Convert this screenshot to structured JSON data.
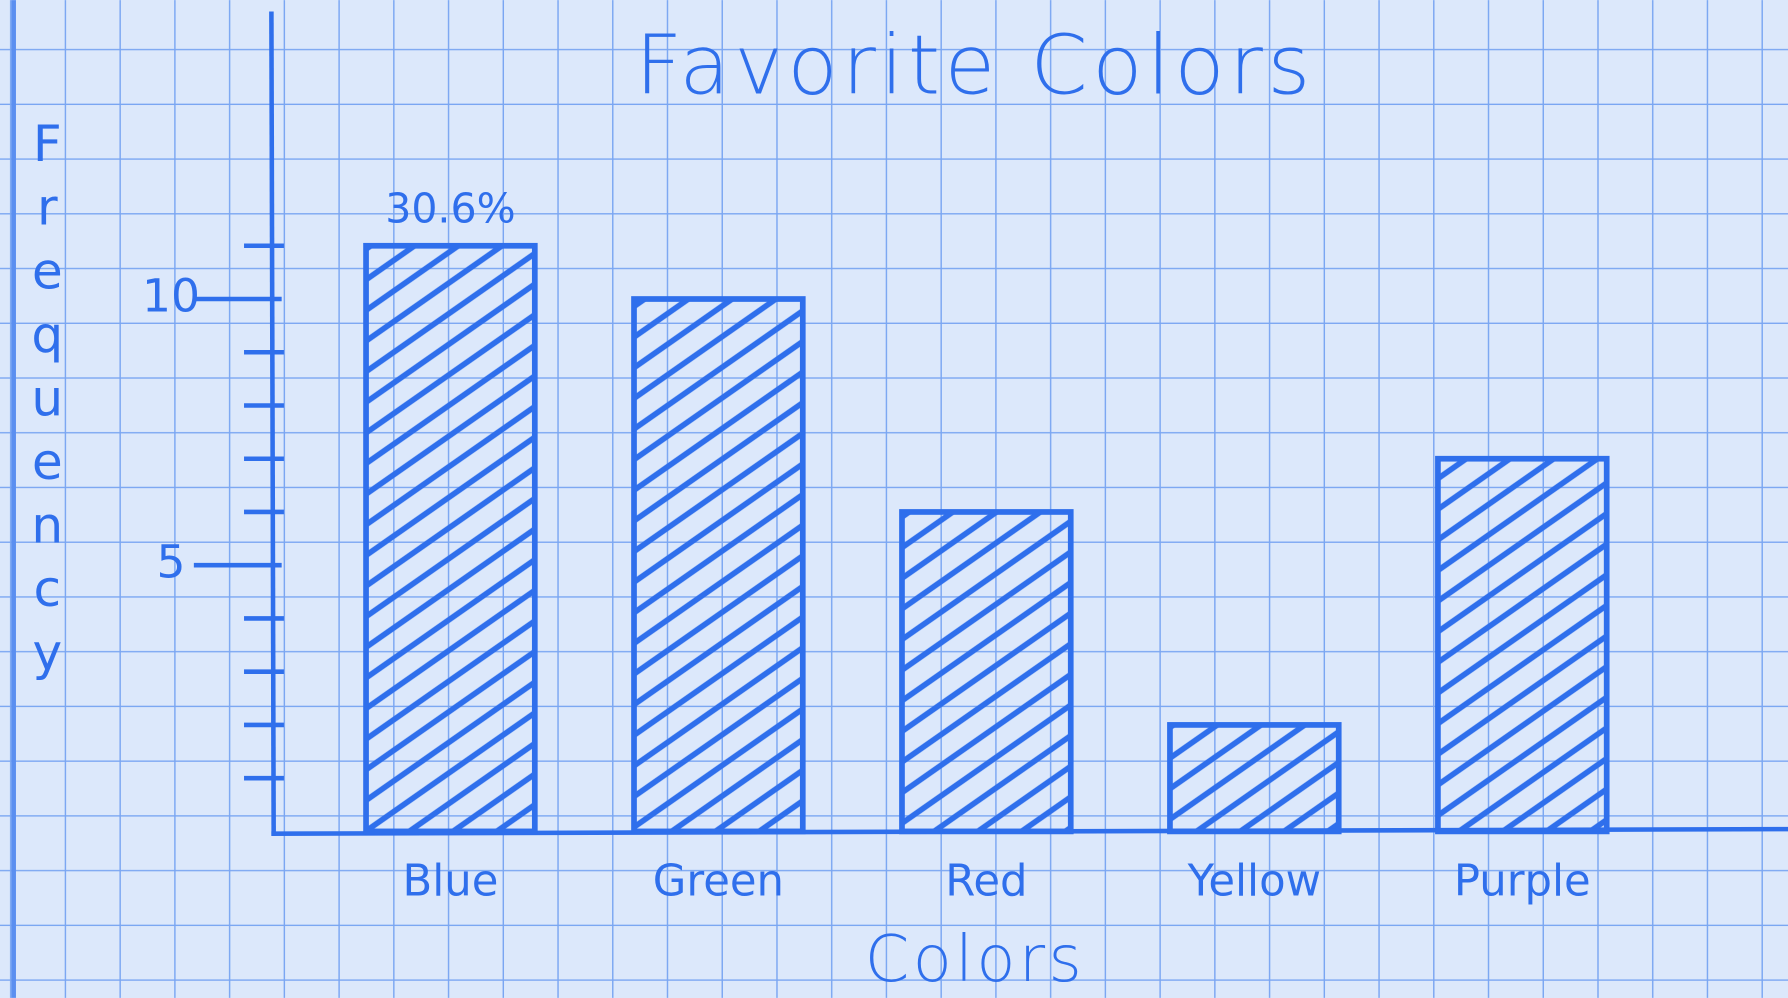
{
  "chart_data": {
    "type": "bar",
    "title": "Favorite Colors",
    "x_label": "Colors",
    "y_label": "Frequency",
    "categories": [
      "Blue",
      "Green",
      "Red",
      "Yellow",
      "Purple"
    ],
    "values": [
      11,
      10,
      6,
      2,
      7
    ],
    "color": "#2f6fec",
    "annotation": "30.6%",
    "ylim": [
      0,
      15.4
    ],
    "yticks": [
      5,
      10
    ],
    "yminor_ticks": [
      1,
      2,
      3,
      4,
      6,
      7,
      8,
      9,
      11
    ],
    "grid": true
  }
}
